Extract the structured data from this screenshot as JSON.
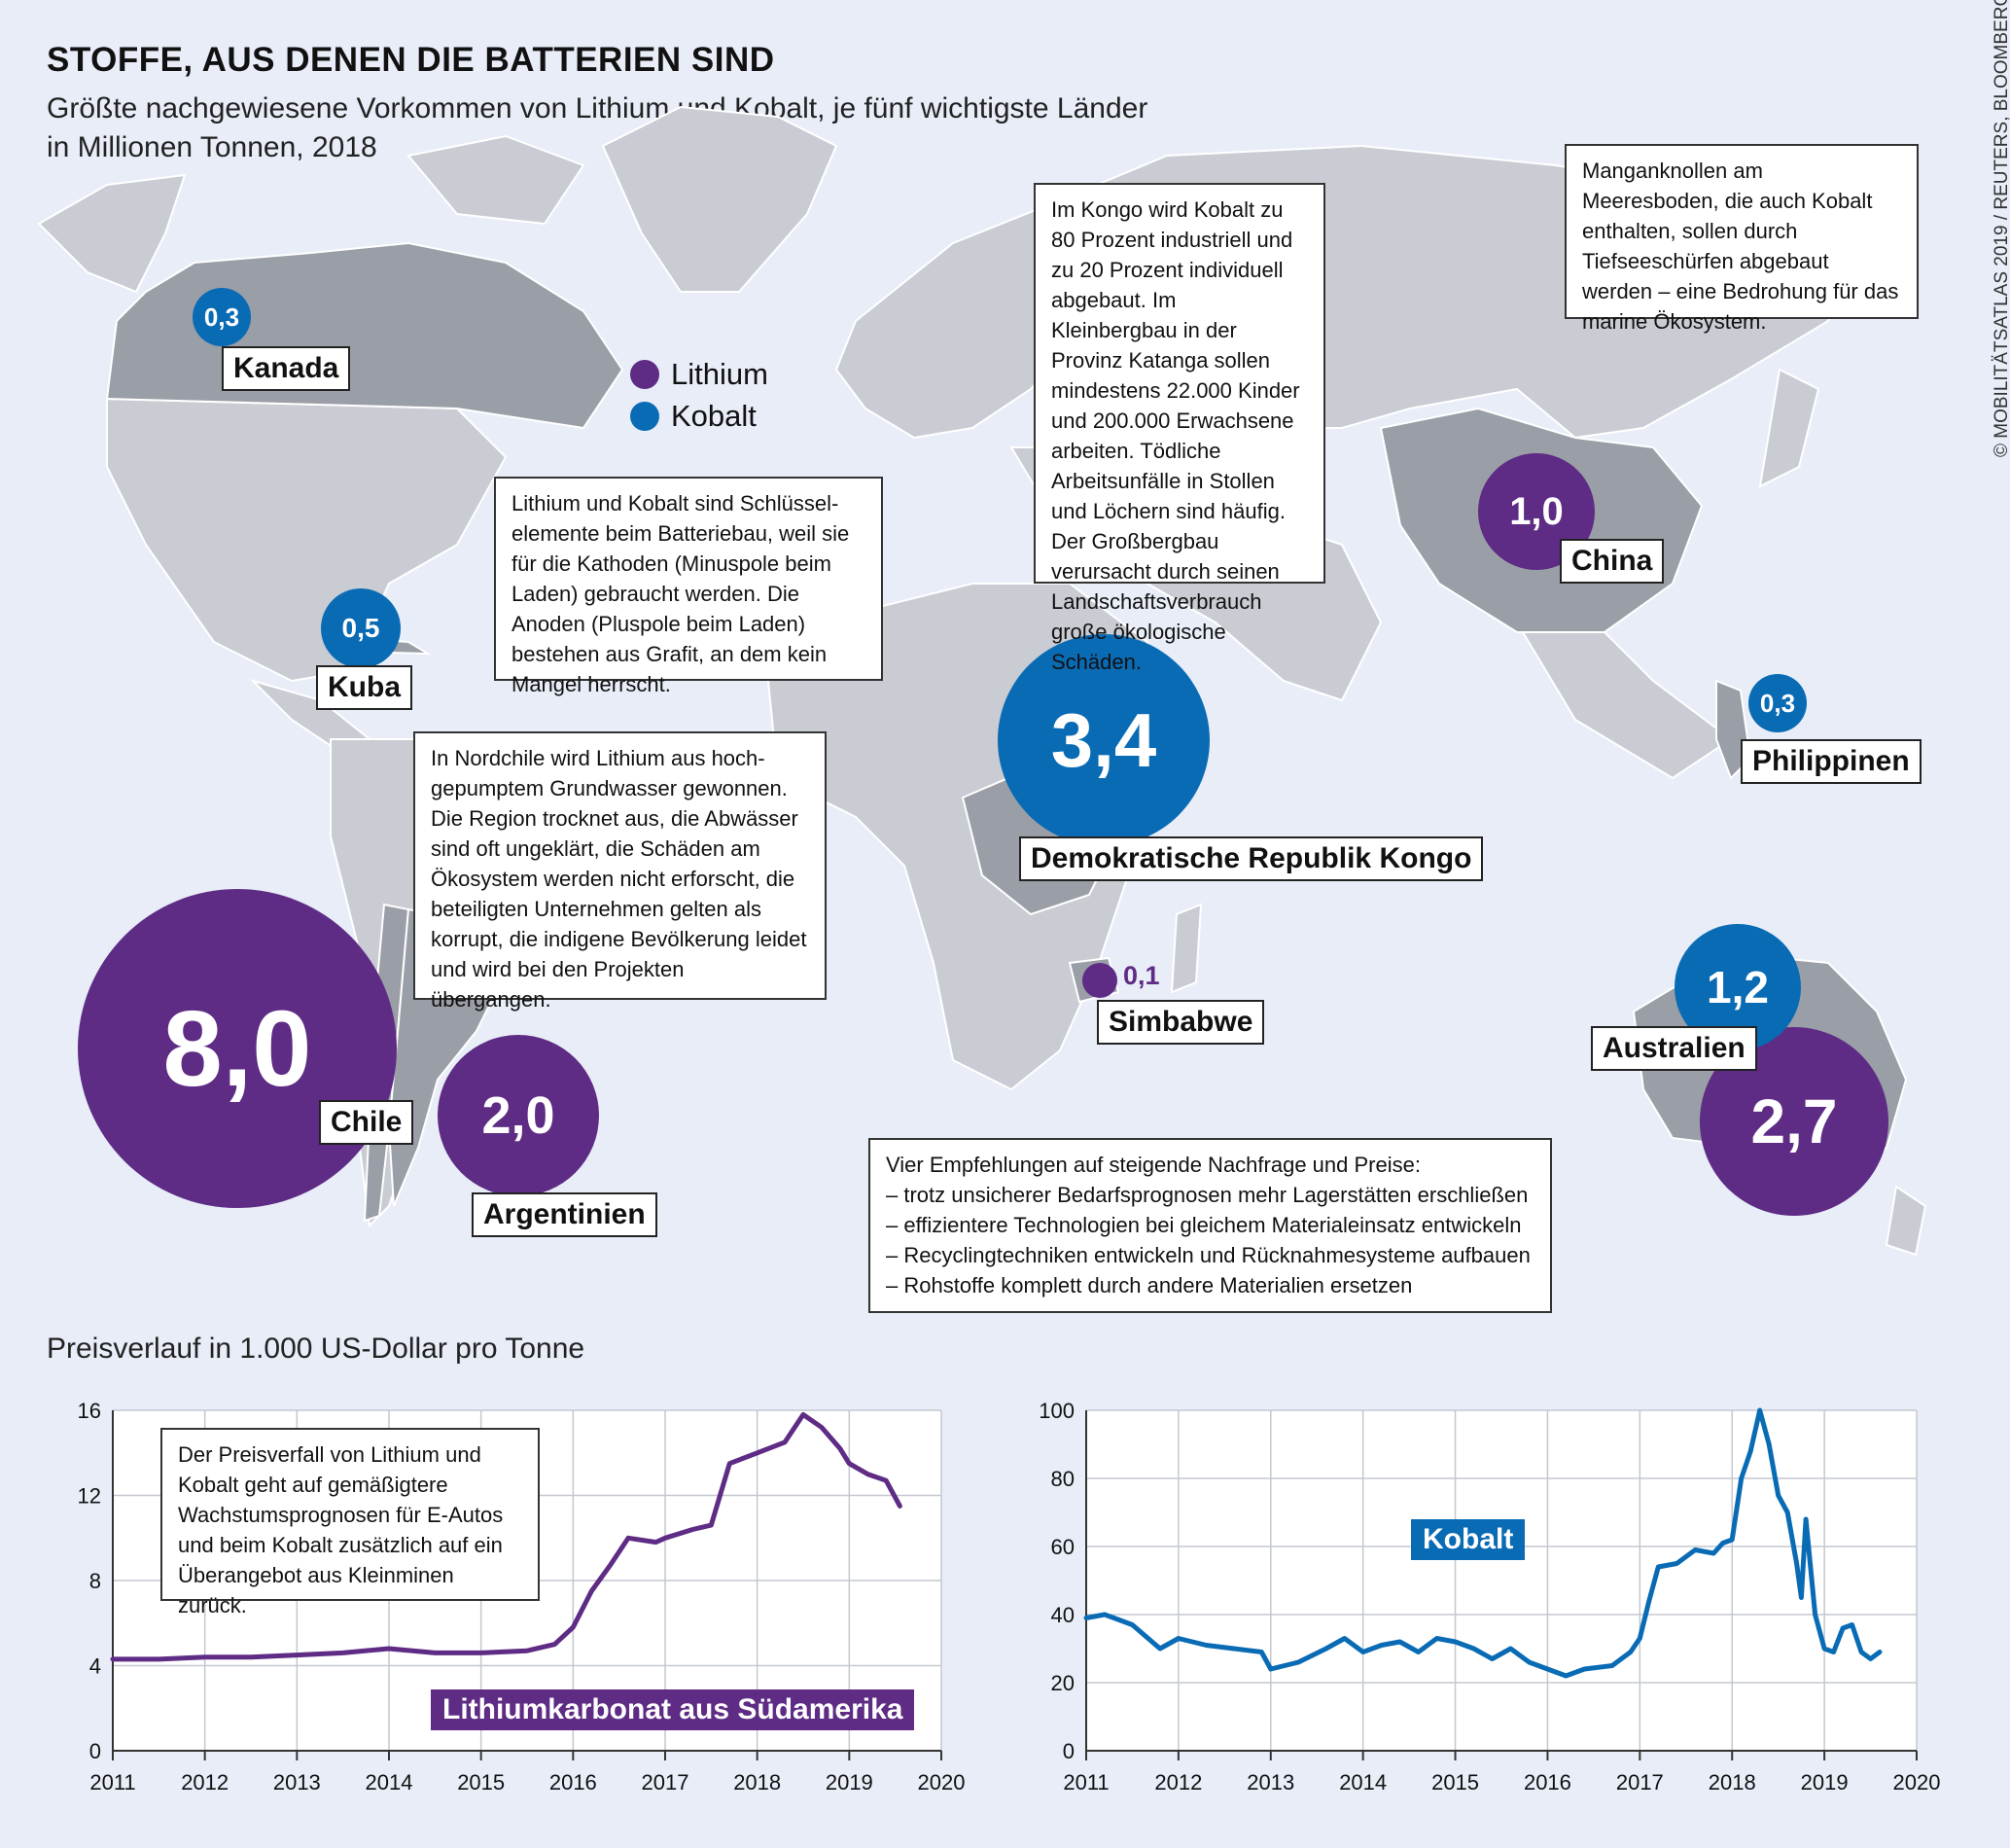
{
  "title": "STOFFE, AUS DENEN DIE BATTERIEN SIND",
  "subtitle_line1": "Größte nachgewiesene Vorkommen von Lithium und Kobalt, je fünf wichtigste Länder",
  "subtitle_line2": "in Millionen Tonnen, 2018",
  "credit": "© MOBILITÄTSATLAS 2019 / REUTERS, BLOOMBERG",
  "legend": {
    "lithium": "Lithium",
    "kobalt": "Kobalt"
  },
  "colors": {
    "lithium": "#5e2b85",
    "kobalt": "#0a6bb5",
    "map_land": "#c9ccd3",
    "map_highlight": "#9a9ea6",
    "background": "#e8edf8"
  },
  "countries": {
    "kanada": {
      "name": "Kanada",
      "kobalt": "0,3"
    },
    "kuba": {
      "name": "Kuba",
      "kobalt": "0,5"
    },
    "chile": {
      "name": "Chile",
      "lithium": "8,0"
    },
    "argentinien": {
      "name": "Argentinien",
      "lithium": "2,0"
    },
    "kongo": {
      "name": "Demokratische Republik Kongo",
      "kobalt": "3,4"
    },
    "simbabwe": {
      "name": "Simbabwe",
      "lithium": "0,1"
    },
    "china": {
      "name": "China",
      "lithium": "1,0"
    },
    "philippinen": {
      "name": "Philippinen",
      "kobalt": "0,3"
    },
    "australien": {
      "name": "Australien",
      "kobalt": "1,2",
      "lithium": "2,7"
    }
  },
  "notes": {
    "batterie": "Lithium und Kobalt sind Schlüssel-elemente beim Batteriebau, weil sie für die Kathoden (Minuspole beim Laden) gebraucht werden. Die Anoden (Pluspole beim Laden) bestehen aus Grafit, an dem kein Mangel herrscht.",
    "kongo": "Im Kongo wird Kobalt zu 80 Prozent industriell und zu 20 Prozent individuell abgebaut. Im Kleinbergbau in der Provinz Katanga sollen mindestens 22.000 Kinder und 200.000 Erwachsene arbeiten. Tödliche Arbeitsunfälle in Stollen und Löchern sind häufig. Der Großbergbau verursacht durch seinen Landschaftsverbrauch große ökologische Schäden.",
    "mangan": "Manganknollen am Meeresboden, die auch Kobalt enthalten, sollen durch Tiefseeschürfen abgebaut werden – eine Bedrohung für das marine Ökosystem.",
    "chile": "In Nordchile wird Lithium aus hoch-gepumptem Grundwasser gewonnen. Die Region trocknet aus, die Abwässer sind oft ungeklärt, die Schäden am Ökosystem werden nicht erforscht, die beteiligten Unternehmen gelten als korrupt, die indigene Bevölkerung leidet und wird bei den Projekten übergangen.",
    "empfehlungen_title": "Vier Empfehlungen auf steigende Nachfrage und Preise:",
    "empfehlungen": [
      "– trotz unsicherer Bedarfsprognosen mehr Lagerstätten erschließen",
      "– effizientere Technologien bei gleichem Materialeinsatz entwickeln",
      "– Recyclingtechniken entwickeln und Rücknahmesysteme aufbauen",
      "– Rohstoffe komplett durch andere Materialien ersetzen"
    ],
    "preisverfall": "Der Preisverfall von Lithium und Kobalt geht auf gemäßigtere Wachstumsprognosen für E-Autos und beim Kobalt zusätzlich auf ein Überangebot aus Kleinminen zurück."
  },
  "chart_heading": "Preisverlauf in 1.000 US-Dollar pro Tonne",
  "chart_data": [
    {
      "type": "line",
      "title": "Lithiumkarbonat aus Südamerika",
      "xlabel": "",
      "ylabel": "",
      "xlim": [
        2011,
        2020
      ],
      "ylim": [
        0,
        16
      ],
      "xticks": [
        2011,
        2012,
        2013,
        2014,
        2015,
        2016,
        2017,
        2018,
        2019,
        2020
      ],
      "yticks": [
        0,
        4,
        8,
        12,
        16
      ],
      "grid": true,
      "color": "#5e2b85",
      "x": [
        2011.0,
        2011.5,
        2012.0,
        2012.5,
        2013.0,
        2013.5,
        2014.0,
        2014.5,
        2015.0,
        2015.5,
        2015.8,
        2016.0,
        2016.2,
        2016.4,
        2016.6,
        2016.9,
        2017.0,
        2017.3,
        2017.5,
        2017.7,
        2018.0,
        2018.3,
        2018.5,
        2018.7,
        2018.9,
        2019.0,
        2019.2,
        2019.4,
        2019.55
      ],
      "y": [
        4.3,
        4.3,
        4.4,
        4.4,
        4.5,
        4.6,
        4.8,
        4.6,
        4.6,
        4.7,
        5.0,
        5.8,
        7.5,
        8.7,
        10.0,
        9.8,
        10.0,
        10.4,
        10.6,
        13.5,
        14.0,
        14.5,
        15.8,
        15.2,
        14.2,
        13.5,
        13.0,
        12.7,
        11.5
      ]
    },
    {
      "type": "line",
      "title": "Kobalt",
      "xlabel": "",
      "ylabel": "",
      "xlim": [
        2011,
        2020
      ],
      "ylim": [
        0,
        100
      ],
      "xticks": [
        2011,
        2012,
        2013,
        2014,
        2015,
        2016,
        2017,
        2018,
        2019,
        2020
      ],
      "yticks": [
        0,
        20,
        40,
        60,
        80,
        100
      ],
      "grid": true,
      "color": "#0a6bb5",
      "x": [
        2011.0,
        2011.2,
        2011.5,
        2011.8,
        2012.0,
        2012.3,
        2012.6,
        2012.9,
        2013.0,
        2013.3,
        2013.6,
        2013.8,
        2014.0,
        2014.2,
        2014.4,
        2014.6,
        2014.8,
        2015.0,
        2015.2,
        2015.4,
        2015.6,
        2015.8,
        2016.0,
        2016.2,
        2016.4,
        2016.7,
        2016.9,
        2017.0,
        2017.1,
        2017.2,
        2017.4,
        2017.6,
        2017.8,
        2017.9,
        2018.0,
        2018.1,
        2018.2,
        2018.3,
        2018.4,
        2018.5,
        2018.6,
        2018.7,
        2018.75,
        2018.8,
        2018.9,
        2019.0,
        2019.1,
        2019.2,
        2019.3,
        2019.4,
        2019.5,
        2019.6
      ],
      "y": [
        39,
        40,
        37,
        30,
        33,
        31,
        30,
        29,
        24,
        26,
        30,
        33,
        29,
        31,
        32,
        29,
        33,
        32,
        30,
        27,
        30,
        26,
        24,
        22,
        24,
        25,
        29,
        33,
        44,
        54,
        55,
        59,
        58,
        61,
        62,
        80,
        88,
        100,
        90,
        75,
        70,
        55,
        45,
        68,
        40,
        30,
        29,
        36,
        37,
        29,
        27,
        29
      ]
    }
  ]
}
